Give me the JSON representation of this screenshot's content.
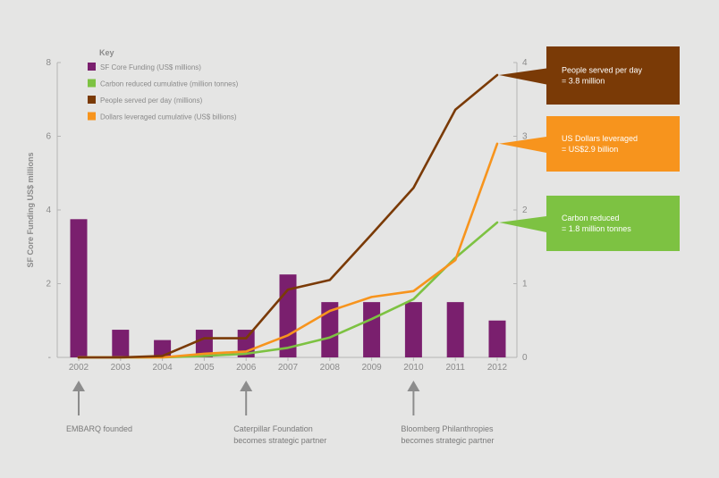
{
  "chart_data": {
    "type": "bar",
    "categories": [
      "2002",
      "2003",
      "2004",
      "2005",
      "2006",
      "2007",
      "2008",
      "2009",
      "2010",
      "2011",
      "2012"
    ],
    "ylabel": "SF Core Funding US$ millions",
    "y_left_ticks": [
      "-",
      "2",
      "4",
      "6",
      "8"
    ],
    "y_left_range": [
      0,
      8
    ],
    "y_right_ticks": [
      "0",
      "1",
      "2",
      "3",
      "4"
    ],
    "y_right_range": [
      0,
      4
    ],
    "bar_series": {
      "name": "SF Core Funding (US$ millions)",
      "color": "#7a1f6e",
      "values": [
        3.75,
        0.75,
        0.47,
        0.75,
        0.75,
        2.25,
        1.5,
        1.5,
        1.5,
        1.5,
        1.0
      ]
    },
    "line_series": [
      {
        "name": "Carbon reduced cumulative (million tonnes)",
        "color": "#7dc242",
        "values": [
          0.0,
          0.0,
          0.0,
          0.02,
          0.05,
          0.13,
          0.27,
          0.52,
          0.79,
          1.35,
          1.83
        ]
      },
      {
        "name": "People served per day (millions)",
        "color": "#7a3a06",
        "values": [
          0.0,
          0.0,
          0.02,
          0.26,
          0.26,
          0.92,
          1.05,
          1.67,
          2.3,
          3.36,
          3.83
        ]
      },
      {
        "name": "Dollars leveraged cumulative (US$ billions)",
        "color": "#f7941d",
        "values": [
          0.0,
          0.0,
          0.0,
          0.05,
          0.08,
          0.3,
          0.63,
          0.82,
          0.9,
          1.32,
          2.9
        ]
      }
    ],
    "key_title": "Key",
    "callouts": [
      {
        "line1": "People served per day",
        "line2": "= 3.8 million",
        "color": "#7a3a06",
        "series": 1
      },
      {
        "line1": "US Dollars leveraged",
        "line2": "= US$2.9 billion",
        "color": "#f7941d",
        "series": 2
      },
      {
        "line1": "Carbon reduced",
        "line2": "= 1.8 million tonnes",
        "color": "#7dc242",
        "series": 0
      }
    ],
    "milestones": [
      {
        "year": "2002",
        "line1": "EMBARQ founded",
        "line2": ""
      },
      {
        "year": "2006",
        "line1": "Caterpillar Foundation",
        "line2": "becomes strategic partner"
      },
      {
        "year": "2010",
        "line1": "Bloomberg Philanthropies",
        "line2": "becomes strategic partner"
      }
    ]
  }
}
